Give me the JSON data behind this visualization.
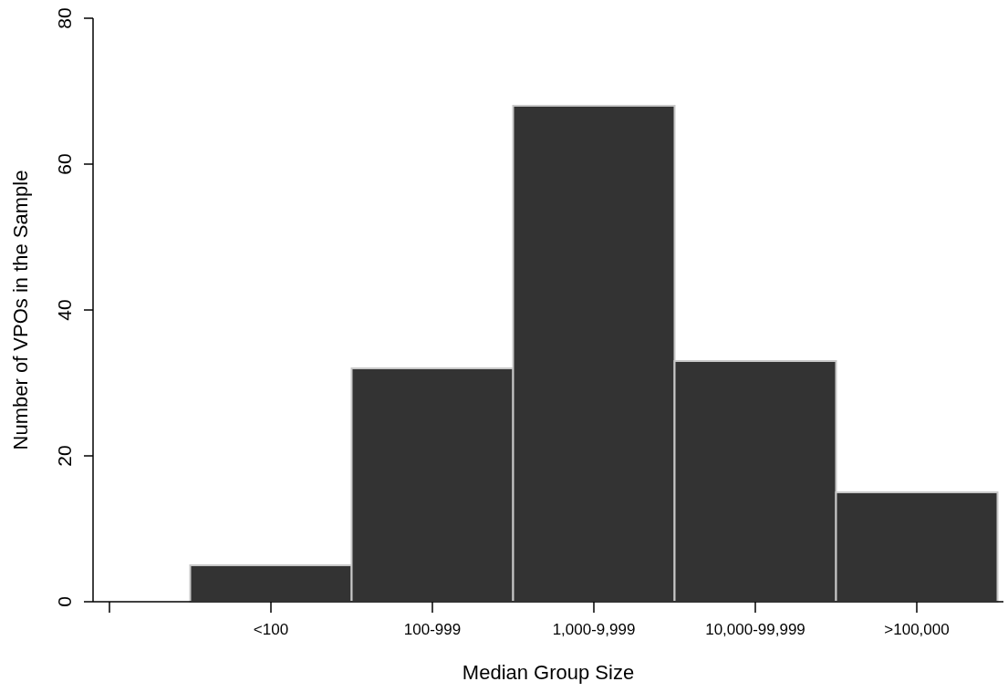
{
  "chart_data": {
    "type": "bar",
    "xlabel": "Median Group Size",
    "ylabel": "Number of VPOs in the Sample",
    "categories": [
      null,
      "<100",
      "100-999",
      "1,000-9,999",
      "10,000-99,999",
      ">100,000"
    ],
    "values": [
      null,
      5,
      32,
      68,
      33,
      15
    ],
    "color": "#333333",
    "ylim": [
      0,
      80
    ],
    "yticks": [
      0,
      20,
      40,
      60,
      80
    ],
    "grid": false
  }
}
